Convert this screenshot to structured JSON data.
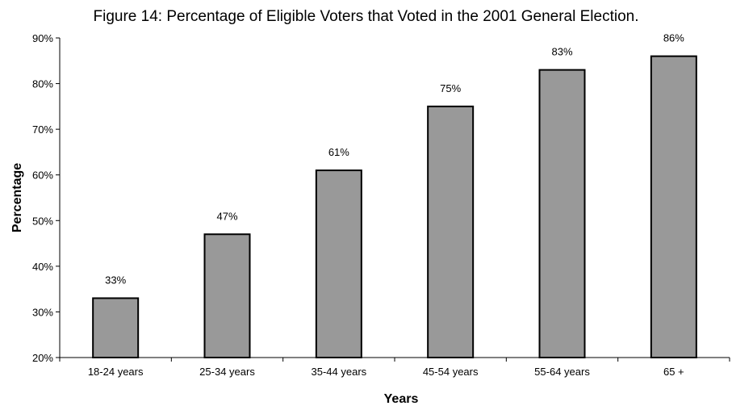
{
  "chart_data": {
    "type": "bar",
    "title": "Figure 14: Percentage of Eligible Voters that Voted in the 2001 General Election.",
    "xlabel": "Years",
    "ylabel": "Percentage",
    "categories": [
      "18-24 years",
      "25-34 years",
      "35-44 years",
      "45-54 years",
      "55-64 years",
      "65 +"
    ],
    "values": [
      33,
      47,
      61,
      75,
      83,
      86
    ],
    "data_labels": [
      "33%",
      "47%",
      "61%",
      "75%",
      "83%",
      "86%"
    ],
    "ylim": [
      20,
      90
    ],
    "yticks": [
      20,
      30,
      40,
      50,
      60,
      70,
      80,
      90
    ],
    "ytick_labels": [
      "20%",
      "30%",
      "40%",
      "50%",
      "60%",
      "70%",
      "80%",
      "90%"
    ],
    "grid": false,
    "legend": "none",
    "colors": {
      "bar_fill": "#999999",
      "bar_stroke": "#000000",
      "axis": "#000000"
    }
  }
}
